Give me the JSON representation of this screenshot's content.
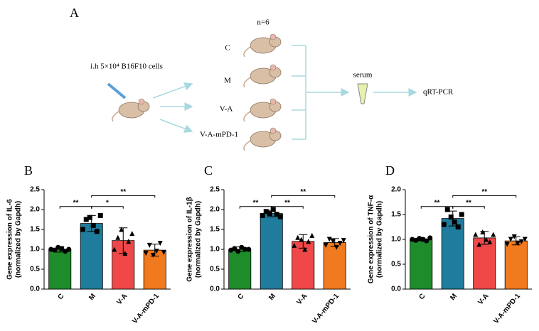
{
  "diagram": {
    "panel": "A",
    "group_size": "n=6",
    "injection": "i.h 5×10⁴ B16F10 cells",
    "groups": [
      "C",
      "M",
      "V-A",
      "V-A-mPD-1"
    ],
    "sample": "serum",
    "assay": "qRT-PCR"
  },
  "chart_data": [
    {
      "type": "bar",
      "panel": "B",
      "ylabel": [
        "Gene expression of IL-6",
        "(normalized by Gapdh)"
      ],
      "categories": [
        "C",
        "M",
        "V-A",
        "V-A-mPD-1"
      ],
      "colors": [
        "#1e8c2a",
        "#1f7c9c",
        "#f04848",
        "#f27a1e"
      ],
      "markers": [
        "circle",
        "square",
        "triangle-up",
        "triangle-down"
      ],
      "values": [
        1.0,
        1.65,
        1.22,
        0.98
      ],
      "errors": [
        0.07,
        0.2,
        0.32,
        0.15
      ],
      "points": [
        [
          1.0,
          0.98,
          1.05,
          1.02,
          0.95,
          1.0
        ],
        [
          1.5,
          1.75,
          1.8,
          1.6,
          1.45,
          1.85
        ],
        [
          1.0,
          1.3,
          1.5,
          0.9,
          1.2,
          1.4
        ],
        [
          0.9,
          1.1,
          0.85,
          0.95,
          1.15,
          0.92
        ]
      ],
      "ylim": [
        0,
        2.5
      ],
      "yticks": [
        {
          "value": 0,
          "label": "0.0"
        },
        0.5,
        {
          "value": 1,
          "label": "1.0"
        },
        1.5,
        {
          "value": 2,
          "label": "2.0"
        },
        2.5
      ],
      "significance": [
        {
          "from": 0,
          "to": 1,
          "label": "**"
        },
        {
          "from": 1,
          "to": 2,
          "label": "*"
        },
        {
          "from": 1,
          "to": 3,
          "label": "**"
        }
      ]
    },
    {
      "type": "bar",
      "panel": "C",
      "ylabel": [
        "Gene expression of IL-1β",
        "(normalized by Gapdh)"
      ],
      "categories": [
        "C",
        "M",
        "V-A",
        "V-A-mPD-1"
      ],
      "colors": [
        "#1e8c2a",
        "#1f7c9c",
        "#f04848",
        "#f27a1e"
      ],
      "markers": [
        "circle",
        "square",
        "triangle-up",
        "triangle-down"
      ],
      "values": [
        1.0,
        1.9,
        1.2,
        1.17
      ],
      "errors": [
        0.06,
        0.08,
        0.17,
        0.1
      ],
      "points": [
        [
          0.98,
          1.02,
          0.95,
          1.05,
          1.0,
          1.0
        ],
        [
          1.85,
          1.95,
          1.9,
          2.0,
          1.88,
          1.82
        ],
        [
          1.1,
          1.3,
          1.25,
          1.0,
          1.2,
          1.35
        ],
        [
          1.1,
          1.25,
          1.2,
          1.05,
          1.15,
          1.22
        ]
      ],
      "ylim": [
        0,
        2.5
      ],
      "yticks": [
        {
          "value": 0,
          "label": "0.0"
        },
        0.5,
        {
          "value": 1,
          "label": "1.0"
        },
        1.5,
        {
          "value": 2,
          "label": "2.0"
        },
        2.5
      ],
      "significance": [
        {
          "from": 0,
          "to": 1,
          "label": "**"
        },
        {
          "from": 1,
          "to": 2,
          "label": "**"
        },
        {
          "from": 1,
          "to": 3,
          "label": "**"
        }
      ]
    },
    {
      "type": "bar",
      "panel": "D",
      "ylabel": [
        "Gene expression of TNF-α",
        "(normalized by Gapdh)"
      ],
      "categories": [
        "C",
        "M",
        "V-A",
        "V-A-mPD-1"
      ],
      "colors": [
        "#1e8c2a",
        "#1f7c9c",
        "#f04848",
        "#f27a1e"
      ],
      "markers": [
        "circle",
        "square",
        "triangle-up",
        "triangle-down"
      ],
      "values": [
        1.0,
        1.42,
        1.03,
        0.97
      ],
      "errors": [
        0.03,
        0.15,
        0.13,
        0.08
      ],
      "points": [
        [
          1.0,
          0.98,
          1.02,
          1.0,
          0.97,
          1.03
        ],
        [
          1.3,
          1.6,
          1.45,
          1.35,
          1.25,
          1.5
        ],
        [
          1.1,
          0.9,
          1.15,
          1.0,
          0.95,
          1.1
        ],
        [
          0.9,
          1.0,
          1.05,
          0.92,
          0.95,
          1.0
        ]
      ],
      "ylim": [
        0,
        2
      ],
      "yticks": [
        {
          "value": 0,
          "label": "0.0"
        },
        0.5,
        {
          "value": 1,
          "label": "1.0"
        },
        1.5,
        {
          "value": 2,
          "label": "2.0"
        }
      ],
      "significance": [
        {
          "from": 0,
          "to": 1,
          "label": "**"
        },
        {
          "from": 1,
          "to": 2,
          "label": "**"
        },
        {
          "from": 1,
          "to": 3,
          "label": "**"
        }
      ]
    }
  ]
}
